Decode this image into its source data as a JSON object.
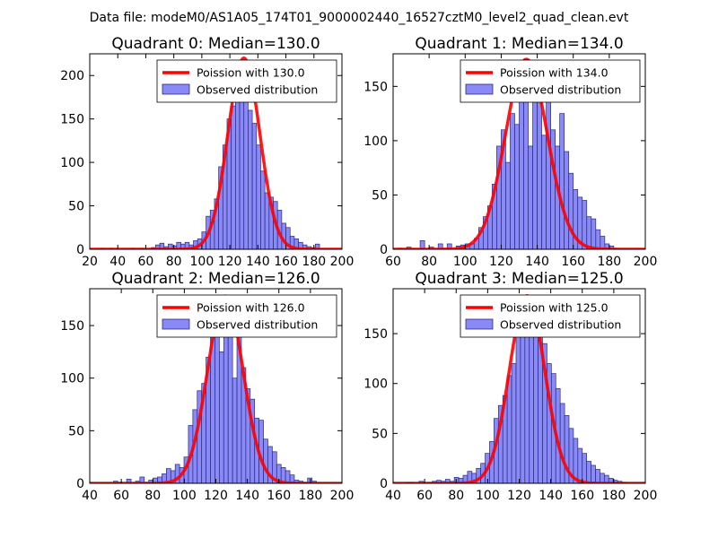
{
  "figure": {
    "title": "Data file: modeM0/AS1A05_174T01_9000002440_16527cztM0_level2_quad_clean.evt"
  },
  "colors": {
    "bars": "#7c7cf7",
    "bar_edge": "#2b2b7a",
    "poisson_line": "#ff0000"
  },
  "chart_data": [
    {
      "type": "bar",
      "title": "Quadrant 0: Median=130.0",
      "median": 130.0,
      "xlim": [
        20,
        200
      ],
      "ylim": [
        0,
        225
      ],
      "xticks": [
        20,
        40,
        60,
        80,
        100,
        120,
        140,
        160,
        180,
        200
      ],
      "yticks": [
        0,
        50,
        100,
        150,
        200
      ],
      "legend": {
        "position": "upper-right",
        "line_label": "Poission with 130.0",
        "bar_label": "Observed distribution"
      },
      "bin_width": 3,
      "bin_starts": [
        28,
        31,
        34,
        37,
        40,
        43,
        46,
        49,
        52,
        55,
        58,
        61,
        64,
        67,
        70,
        73,
        76,
        79,
        82,
        85,
        88,
        91,
        94,
        97,
        100,
        103,
        106,
        109,
        112,
        115,
        118,
        121,
        124,
        127,
        130,
        133,
        136,
        139,
        142,
        145,
        148,
        151,
        154,
        157,
        160,
        163,
        166,
        169,
        172,
        175,
        178,
        181
      ],
      "counts": [
        1,
        0,
        1,
        0,
        0,
        0,
        0,
        1,
        0,
        1,
        0,
        0,
        2,
        5,
        7,
        3,
        6,
        4,
        8,
        6,
        8,
        5,
        10,
        12,
        20,
        38,
        45,
        58,
        95,
        120,
        150,
        165,
        178,
        215,
        195,
        160,
        145,
        120,
        90,
        65,
        60,
        55,
        45,
        30,
        25,
        15,
        12,
        8,
        5,
        3,
        2,
        6
      ],
      "poisson_mean": 130.0,
      "poisson_peak": 220
    },
    {
      "type": "bar",
      "title": "Quadrant 1: Median=134.0",
      "median": 134.0,
      "xlim": [
        60,
        200
      ],
      "ylim": [
        0,
        180
      ],
      "xticks": [
        60,
        80,
        100,
        120,
        140,
        160,
        180,
        200
      ],
      "yticks": [
        0,
        50,
        100,
        150
      ],
      "legend": {
        "position": "upper-right",
        "line_label": "Poission with 134.0",
        "bar_label": "Observed distribution"
      },
      "bin_width": 2.5,
      "bin_starts": [
        60,
        62.5,
        65,
        67.5,
        70,
        72.5,
        75,
        77.5,
        80,
        82.5,
        85,
        87.5,
        90,
        92.5,
        95,
        97.5,
        100,
        102.5,
        105,
        107.5,
        110,
        112.5,
        115,
        117.5,
        120,
        122.5,
        125,
        127.5,
        130,
        132.5,
        135,
        137.5,
        140,
        142.5,
        145,
        147.5,
        150,
        152.5,
        155,
        157.5,
        160,
        162.5,
        165,
        167.5,
        170,
        172.5,
        175,
        177.5,
        180,
        182.5
      ],
      "counts": [
        0,
        1,
        0,
        2,
        0,
        0,
        8,
        0,
        2,
        0,
        5,
        0,
        5,
        0,
        3,
        4,
        5,
        5,
        10,
        20,
        30,
        40,
        60,
        95,
        110,
        80,
        125,
        115,
        150,
        175,
        95,
        165,
        170,
        105,
        140,
        110,
        95,
        125,
        90,
        70,
        55,
        48,
        45,
        30,
        28,
        18,
        12,
        5,
        3,
        1
      ],
      "poisson_mean": 134.0,
      "poisson_peak": 175
    },
    {
      "type": "bar",
      "title": "Quadrant 2: Median=126.0",
      "median": 126.0,
      "xlim": [
        40,
        200
      ],
      "ylim": [
        0,
        185
      ],
      "xticks": [
        40,
        60,
        80,
        100,
        120,
        140,
        160,
        180,
        200
      ],
      "yticks": [
        0,
        50,
        100,
        150
      ],
      "legend": {
        "position": "upper-right",
        "line_label": "Poission with 126.0",
        "bar_label": "Observed distribution"
      },
      "bin_width": 2.8,
      "bin_starts": [
        55,
        57.8,
        60.6,
        63.4,
        66.2,
        69,
        71.8,
        74.6,
        77.4,
        80.2,
        83,
        85.8,
        88.6,
        91.4,
        94.2,
        97,
        99.8,
        102.6,
        105.4,
        108.2,
        111,
        113.8,
        116.6,
        119.4,
        122.2,
        125,
        127.8,
        130.6,
        133.4,
        136.2,
        139,
        141.8,
        144.6,
        147.4,
        150.2,
        153,
        155.8,
        158.6,
        161.4,
        164.2,
        167,
        169.8,
        172.6,
        175.4,
        178.2,
        181,
        183.8
      ],
      "counts": [
        2,
        1,
        0,
        4,
        0,
        2,
        6,
        1,
        3,
        5,
        6,
        9,
        14,
        12,
        18,
        15,
        25,
        55,
        70,
        88,
        95,
        120,
        140,
        155,
        125,
        175,
        160,
        100,
        150,
        110,
        90,
        80,
        62,
        60,
        42,
        35,
        30,
        18,
        15,
        12,
        8,
        3,
        2,
        1,
        5,
        2,
        0
      ],
      "poisson_mean": 126.0,
      "poisson_peak": 178
    },
    {
      "type": "bar",
      "title": "Quadrant 3: Median=125.0",
      "median": 125.0,
      "xlim": [
        40,
        200
      ],
      "ylim": [
        0,
        195
      ],
      "xticks": [
        40,
        60,
        80,
        100,
        120,
        140,
        160,
        180,
        200
      ],
      "yticks": [
        0,
        50,
        100,
        150
      ],
      "legend": {
        "position": "upper-right",
        "line_label": "Poission with 125.0",
        "bar_label": "Observed distribution"
      },
      "bin_width": 2.8,
      "bin_starts": [
        48,
        50.8,
        53.6,
        56.4,
        59.2,
        62,
        64.8,
        67.6,
        70.4,
        73.2,
        76,
        78.8,
        81.6,
        84.4,
        87.2,
        90,
        92.8,
        95.6,
        98.4,
        101.2,
        104,
        106.8,
        109.6,
        112.4,
        115.2,
        118,
        120.8,
        123.6,
        126.4,
        129.2,
        132,
        134.8,
        137.6,
        140.4,
        143.2,
        146,
        148.8,
        151.6,
        154.4,
        157.2,
        160,
        162.8,
        165.6,
        168.4,
        171.2,
        174,
        176.8,
        179.6,
        182.4,
        185.2,
        188
      ],
      "counts": [
        1,
        1,
        0,
        2,
        0,
        1,
        2,
        3,
        2,
        4,
        2,
        6,
        5,
        8,
        12,
        10,
        15,
        20,
        30,
        42,
        65,
        78,
        88,
        108,
        120,
        160,
        150,
        180,
        175,
        170,
        155,
        140,
        120,
        110,
        95,
        80,
        68,
        55,
        45,
        35,
        30,
        22,
        18,
        14,
        10,
        8,
        5,
        3,
        2,
        1,
        0
      ],
      "poisson_mean": 125.0,
      "poisson_peak": 188
    }
  ]
}
